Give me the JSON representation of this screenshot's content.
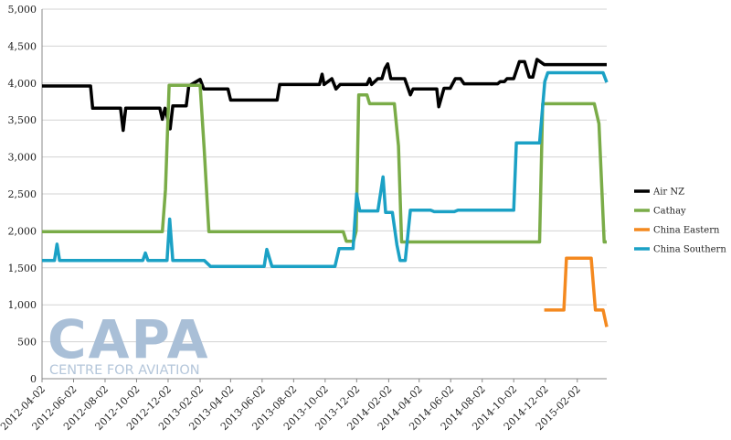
{
  "chart_data": {
    "type": "line",
    "x_ticks": [
      "2012-04-02",
      "2012-06-02",
      "2012-08-02",
      "2012-10-02",
      "2012-12-02",
      "2013-02-02",
      "2013-04-02",
      "2013-06-02",
      "2013-08-02",
      "2013-10-02",
      "2013-12-02",
      "2014-02-02",
      "2014-04-02",
      "2014-06-02",
      "2014-08-02",
      "2014-10-02",
      "2014-12-02",
      "2015-02-02"
    ],
    "y_ticks": [
      "0",
      "500",
      "1,000",
      "1,500",
      "2,000",
      "2,500",
      "3,000",
      "3,500",
      "4,000",
      "4,500",
      "5,000"
    ],
    "ylim": [
      0,
      5000
    ],
    "xlim": [
      "2012-04-02",
      "2015-03-31"
    ],
    "grid": "horizontal",
    "legend_position": "right",
    "series": [
      {
        "name": "Air NZ",
        "color": "#000000",
        "points": [
          [
            "2012-04-02",
            3960
          ],
          [
            "2012-07-05",
            3960
          ],
          [
            "2012-07-09",
            3660
          ],
          [
            "2012-09-01",
            3660
          ],
          [
            "2012-09-06",
            3360
          ],
          [
            "2012-09-11",
            3660
          ],
          [
            "2012-11-16",
            3660
          ],
          [
            "2012-11-21",
            3510
          ],
          [
            "2012-11-26",
            3660
          ],
          [
            "2012-12-06",
            3380
          ],
          [
            "2012-12-11",
            3690
          ],
          [
            "2013-01-06",
            3690
          ],
          [
            "2013-01-11",
            3960
          ],
          [
            "2013-02-02",
            4050
          ],
          [
            "2013-02-09",
            3920
          ],
          [
            "2013-03-28",
            3920
          ],
          [
            "2013-04-02",
            3770
          ],
          [
            "2013-07-01",
            3770
          ],
          [
            "2013-07-06",
            3980
          ],
          [
            "2013-09-21",
            3980
          ],
          [
            "2013-09-26",
            4120
          ],
          [
            "2013-09-30",
            3980
          ],
          [
            "2013-10-15",
            4060
          ],
          [
            "2013-10-23",
            3920
          ],
          [
            "2013-10-31",
            3980
          ],
          [
            "2013-12-22",
            3980
          ],
          [
            "2013-12-27",
            4060
          ],
          [
            "2013-12-31",
            3980
          ],
          [
            "2014-01-12",
            4060
          ],
          [
            "2014-01-20",
            4060
          ],
          [
            "2014-01-26",
            4200
          ],
          [
            "2014-01-31",
            4260
          ],
          [
            "2014-02-06",
            4060
          ],
          [
            "2014-03-05",
            4060
          ],
          [
            "2014-03-16",
            3840
          ],
          [
            "2014-03-21",
            3920
          ],
          [
            "2014-05-06",
            3920
          ],
          [
            "2014-05-10",
            3680
          ],
          [
            "2014-05-20",
            3930
          ],
          [
            "2014-06-01",
            3930
          ],
          [
            "2014-06-11",
            4060
          ],
          [
            "2014-06-21",
            4060
          ],
          [
            "2014-06-28",
            3990
          ],
          [
            "2014-09-01",
            3990
          ],
          [
            "2014-09-06",
            4020
          ],
          [
            "2014-09-14",
            4020
          ],
          [
            "2014-09-19",
            4060
          ],
          [
            "2014-10-02",
            4060
          ],
          [
            "2014-10-13",
            4290
          ],
          [
            "2014-10-23",
            4290
          ],
          [
            "2014-11-01",
            4080
          ],
          [
            "2014-11-08",
            4080
          ],
          [
            "2014-11-16",
            4320
          ],
          [
            "2014-11-30",
            4250
          ],
          [
            "2015-03-31",
            4250
          ]
        ]
      },
      {
        "name": "Cathay",
        "color": "#7aac48",
        "points": [
          [
            "2012-04-02",
            1990
          ],
          [
            "2012-11-21",
            1990
          ],
          [
            "2012-11-27",
            2560
          ],
          [
            "2012-12-04",
            3970
          ],
          [
            "2013-01-27",
            3970
          ],
          [
            "2013-02-02",
            3970
          ],
          [
            "2013-02-10",
            3100
          ],
          [
            "2013-02-19",
            1990
          ],
          [
            "2013-11-06",
            1990
          ],
          [
            "2013-11-12",
            1860
          ],
          [
            "2013-11-26",
            1860
          ],
          [
            "2013-12-01",
            2000
          ],
          [
            "2013-12-06",
            3840
          ],
          [
            "2013-12-22",
            3840
          ],
          [
            "2013-12-27",
            3720
          ],
          [
            "2014-02-13",
            3720
          ],
          [
            "2014-02-21",
            3150
          ],
          [
            "2014-02-27",
            1850
          ],
          [
            "2014-11-21",
            1850
          ],
          [
            "2014-11-27",
            3720
          ],
          [
            "2015-03-07",
            3720
          ],
          [
            "2015-03-16",
            3450
          ],
          [
            "2015-03-26",
            1850
          ],
          [
            "2015-03-31",
            1850
          ]
        ]
      },
      {
        "name": "China Eastern",
        "color": "#f4891f",
        "points": [
          [
            "2014-11-30",
            930
          ],
          [
            "2015-01-07",
            930
          ],
          [
            "2015-01-12",
            1630
          ],
          [
            "2015-02-26",
            1630
          ],
          [
            "2015-03-01",
            1630
          ],
          [
            "2015-03-09",
            930
          ],
          [
            "2015-03-24",
            930
          ],
          [
            "2015-03-31",
            700
          ]
        ]
      },
      {
        "name": "China Southern",
        "color": "#1ba1c5",
        "points": [
          [
            "2012-04-02",
            1600
          ],
          [
            "2012-04-26",
            1600
          ],
          [
            "2012-05-01",
            1820
          ],
          [
            "2012-05-06",
            1600
          ],
          [
            "2012-10-14",
            1600
          ],
          [
            "2012-10-19",
            1700
          ],
          [
            "2012-10-24",
            1600
          ],
          [
            "2012-11-30",
            1600
          ],
          [
            "2012-12-05",
            2160
          ],
          [
            "2012-12-11",
            1600
          ],
          [
            "2013-02-02",
            1600
          ],
          [
            "2013-02-10",
            1600
          ],
          [
            "2013-02-22",
            1520
          ],
          [
            "2013-06-06",
            1520
          ],
          [
            "2013-06-11",
            1750
          ],
          [
            "2013-06-21",
            1520
          ],
          [
            "2013-10-21",
            1520
          ],
          [
            "2013-10-29",
            1760
          ],
          [
            "2013-11-25",
            1760
          ],
          [
            "2013-12-02",
            2500
          ],
          [
            "2013-12-08",
            2270
          ],
          [
            "2014-01-12",
            2270
          ],
          [
            "2014-01-22",
            2730
          ],
          [
            "2014-01-27",
            2250
          ],
          [
            "2014-02-09",
            2250
          ],
          [
            "2014-02-18",
            1810
          ],
          [
            "2014-02-24",
            1600
          ],
          [
            "2014-03-06",
            1600
          ],
          [
            "2014-03-16",
            2280
          ],
          [
            "2014-04-24",
            2280
          ],
          [
            "2014-05-01",
            2260
          ],
          [
            "2014-06-09",
            2260
          ],
          [
            "2014-06-16",
            2280
          ],
          [
            "2014-10-02",
            2280
          ],
          [
            "2014-10-07",
            3190
          ],
          [
            "2014-11-16",
            3190
          ],
          [
            "2014-11-21",
            3190
          ],
          [
            "2014-12-01",
            4020
          ],
          [
            "2014-12-07",
            4140
          ],
          [
            "2015-03-24",
            4140
          ],
          [
            "2015-03-31",
            4010
          ]
        ]
      }
    ]
  },
  "watermark": {
    "logo": "CAPA",
    "tagline": "CENTRE FOR AVIATION"
  }
}
